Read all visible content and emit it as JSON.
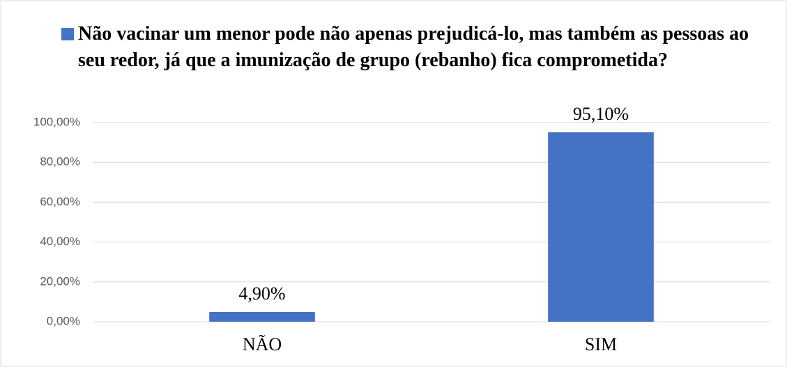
{
  "chart_data": {
    "type": "bar",
    "categories": [
      "NÃO",
      "SIM"
    ],
    "series": [
      {
        "name": "Não vacinar um menor pode não apenas prejudicá-lo, mas também as pessoas ao seu redor, já que a imunização de grupo (rebanho) fica comprometida?",
        "color": "#4472c4",
        "values": [
          4.9,
          95.1
        ],
        "value_labels": [
          "4,90%",
          "95,10%"
        ]
      }
    ],
    "ylim": [
      0,
      100
    ],
    "yticks": [
      {
        "value": 0,
        "label": "0,00%"
      },
      {
        "value": 20,
        "label": "20,00%"
      },
      {
        "value": 40,
        "label": "40,00%"
      },
      {
        "value": 60,
        "label": "60,00%"
      },
      {
        "value": 80,
        "label": "80,00%"
      },
      {
        "value": 100,
        "label": "100,00%"
      }
    ],
    "grid": true,
    "legend": "top"
  }
}
